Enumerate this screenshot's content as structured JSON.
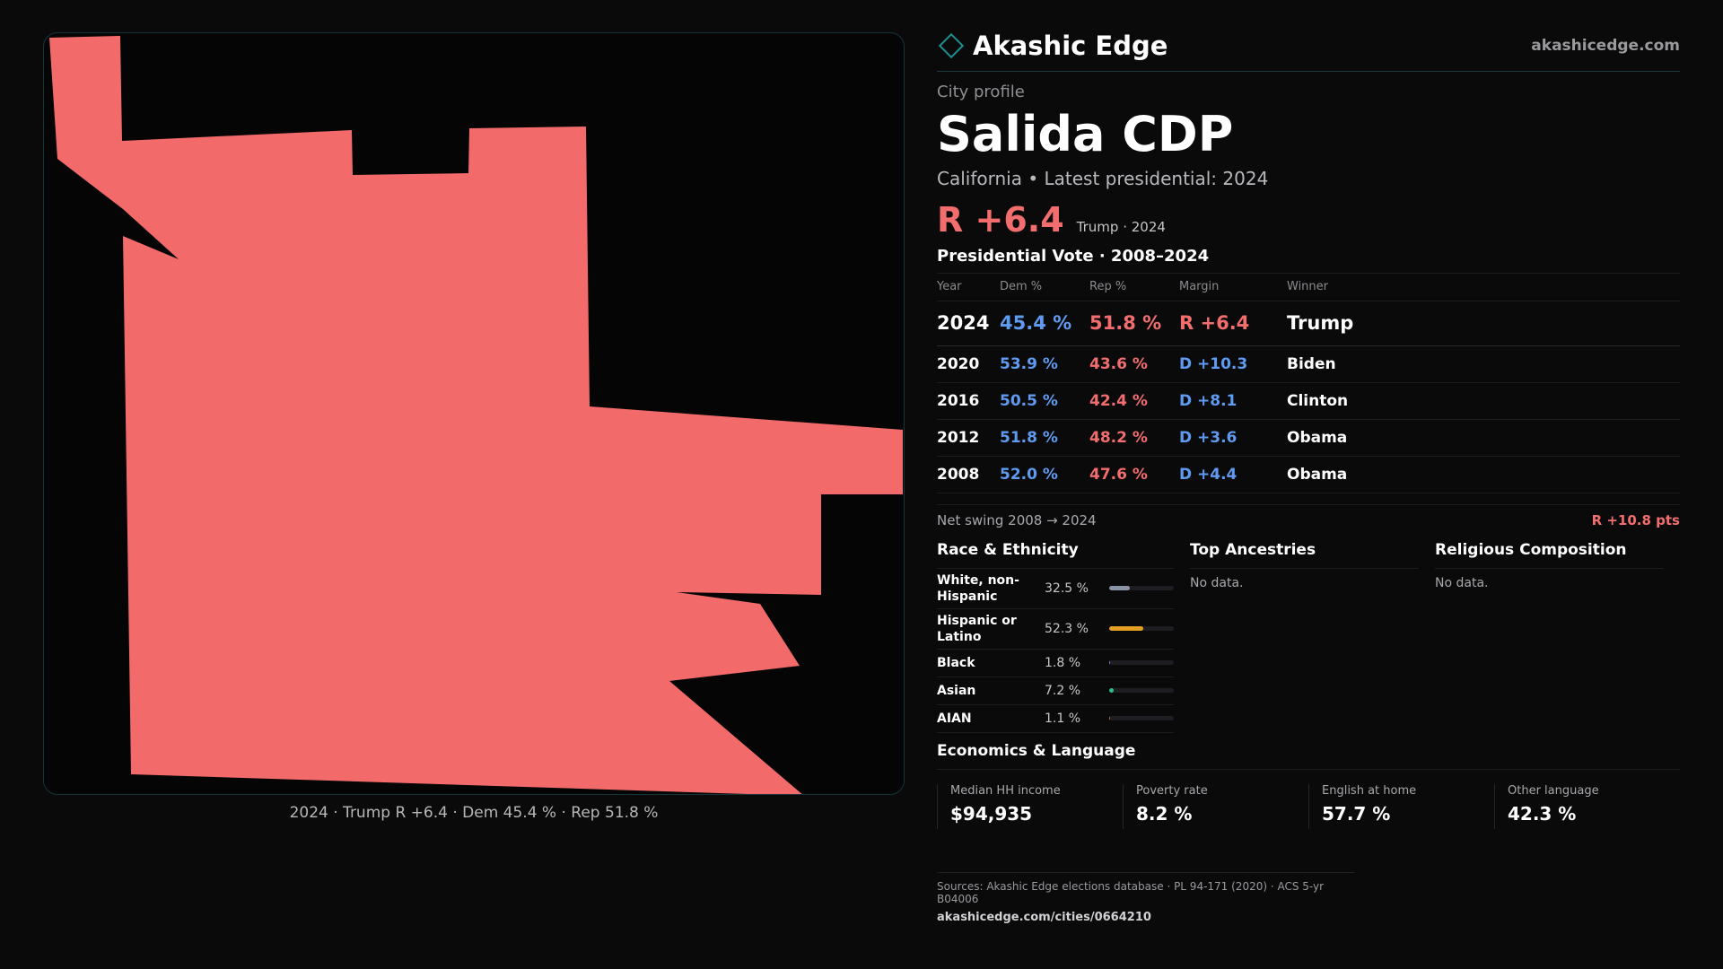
{
  "map": {
    "fill_color": "#f26a6a",
    "caption": "2024 · Trump R +6.4 · Dem 45.4 % · Rep 51.8 %"
  },
  "brand": {
    "name": "Akashic Edge",
    "url": "akashicedge.com",
    "accent": "#1f8f90"
  },
  "city": {
    "label": "City profile",
    "title": "Salida CDP",
    "subtitle": "California • Latest presidential: 2024",
    "margin": "R +6.4",
    "margin_note": "Trump · 2024"
  },
  "vote": {
    "title": "Presidential Vote · 2008–2024",
    "headers": {
      "year": "Year",
      "dem": "Dem %",
      "rep": "Rep %",
      "margin": "Margin",
      "winner": "Winner"
    },
    "rows": [
      {
        "year": "2024",
        "dem": "45.4 %",
        "rep": "51.8 %",
        "margin": "R +6.4",
        "winner": "Trump",
        "party": "R"
      },
      {
        "year": "2020",
        "dem": "53.9 %",
        "rep": "43.6 %",
        "margin": "D +10.3",
        "winner": "Biden",
        "party": "D"
      },
      {
        "year": "2016",
        "dem": "50.5 %",
        "rep": "42.4 %",
        "margin": "D +8.1",
        "winner": "Clinton",
        "party": "D"
      },
      {
        "year": "2012",
        "dem": "51.8 %",
        "rep": "48.2 %",
        "margin": "D +3.6",
        "winner": "Obama",
        "party": "D"
      },
      {
        "year": "2008",
        "dem": "52.0 %",
        "rep": "47.6 %",
        "margin": "D +4.4",
        "winner": "Obama",
        "party": "D"
      }
    ],
    "swing_label": "Net swing 2008 → 2024",
    "swing_value": "R +10.8 pts"
  },
  "race": {
    "title": "Race & Ethnicity",
    "items": [
      {
        "name": "White, non-Hispanic",
        "pct": "32.5 %",
        "value": 32.5,
        "color": "#8a93a3"
      },
      {
        "name": "Hispanic or Latino",
        "pct": "52.3 %",
        "value": 52.3,
        "color": "#e3a024"
      },
      {
        "name": "Black",
        "pct": "1.8 %",
        "value": 1.8,
        "color": "#8b7ae6"
      },
      {
        "name": "Asian",
        "pct": "7.2 %",
        "value": 7.2,
        "color": "#2fbf8f"
      },
      {
        "name": "AIAN",
        "pct": "1.1 %",
        "value": 1.1,
        "color": "#d4724a"
      }
    ]
  },
  "ancestries": {
    "title": "Top Ancestries",
    "empty": "No data."
  },
  "religion": {
    "title": "Religious Composition",
    "empty": "No data."
  },
  "econ": {
    "title": "Economics & Language",
    "items": [
      {
        "label": "Median HH income",
        "value": "$94,935"
      },
      {
        "label": "Poverty rate",
        "value": "8.2 %"
      },
      {
        "label": "English at home",
        "value": "57.7 %"
      },
      {
        "label": "Other language",
        "value": "42.3 %"
      }
    ]
  },
  "sources": {
    "line": "Sources: Akashic Edge elections database · PL 94-171 (2020) · ACS 5-yr B04006",
    "url": "akashicedge.com/cities/0664210"
  }
}
